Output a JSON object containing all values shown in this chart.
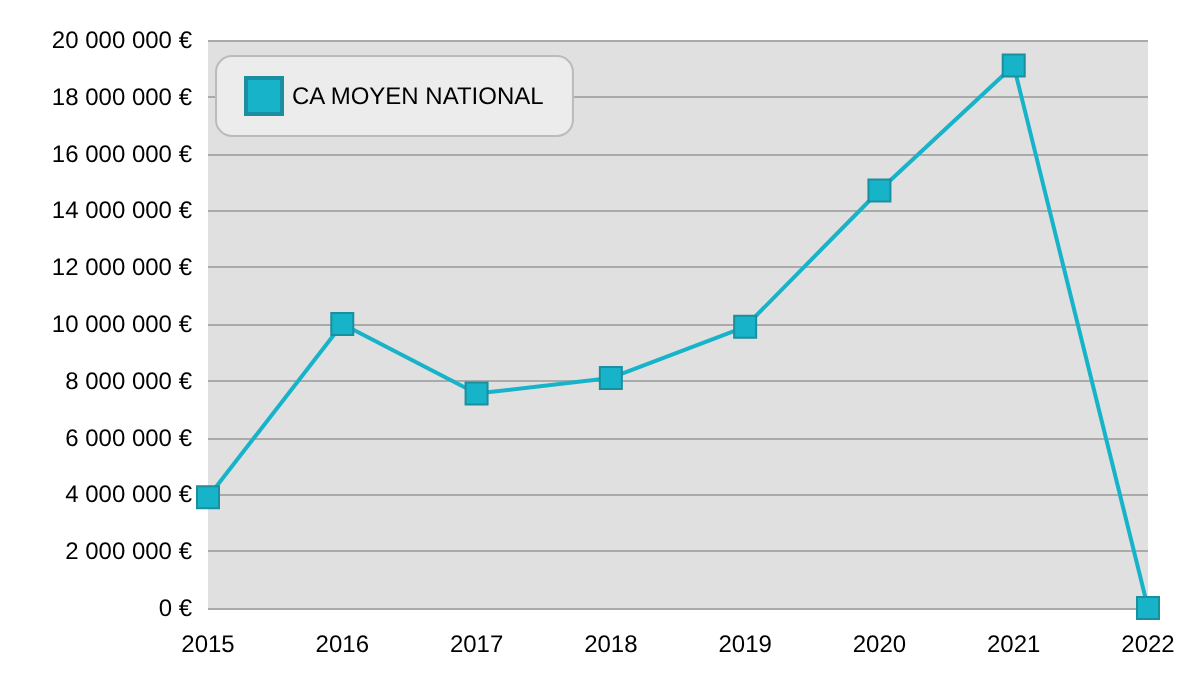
{
  "chart_data": {
    "type": "line",
    "categories": [
      "2015",
      "2016",
      "2017",
      "2018",
      "2019",
      "2020",
      "2021",
      "2022"
    ],
    "series": [
      {
        "name": "CA MOYEN NATIONAL",
        "color": "#17b3c9",
        "values": [
          3900000,
          10000000,
          7550000,
          8100000,
          9900000,
          14700000,
          19100000,
          0
        ]
      }
    ],
    "ylim": [
      0,
      20000000
    ],
    "yticks": [
      {
        "value": 0,
        "label": "0 €"
      },
      {
        "value": 2000000,
        "label": "2 000 000 €"
      },
      {
        "value": 4000000,
        "label": "4 000 000 €"
      },
      {
        "value": 6000000,
        "label": "6 000 000 €"
      },
      {
        "value": 8000000,
        "label": "8 000 000 €"
      },
      {
        "value": 10000000,
        "label": "10 000 000 €"
      },
      {
        "value": 12000000,
        "label": "12 000 000 €"
      },
      {
        "value": 14000000,
        "label": "14 000 000 €"
      },
      {
        "value": 16000000,
        "label": "16 000 000 €"
      },
      {
        "value": 18000000,
        "label": "18 000 000 €"
      },
      {
        "value": 20000000,
        "label": "20 000 000 €"
      }
    ],
    "grid": "y",
    "legend": "top left",
    "marker": "square",
    "line_style": "solid"
  }
}
